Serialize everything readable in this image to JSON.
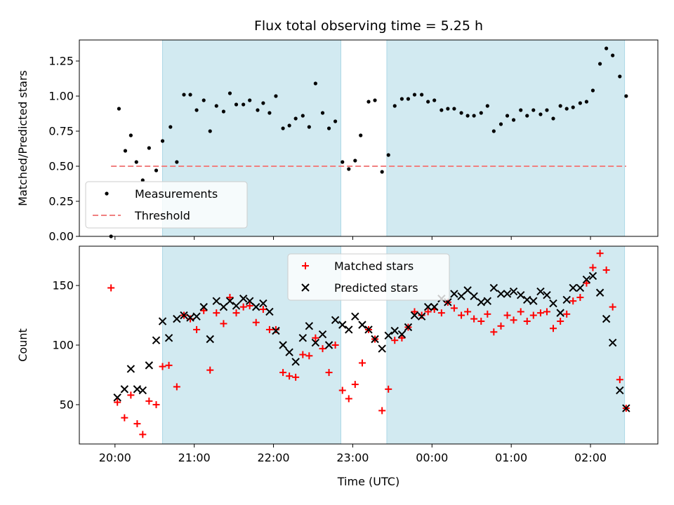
{
  "chart_data": {
    "title": "Flux total observing time = 5.25 h",
    "x_axis": {
      "label": "Time (UTC)",
      "ticks": [
        "20:00",
        "21:00",
        "22:00",
        "23:00",
        "00:00",
        "01:00",
        "02:00"
      ],
      "range_hours": [
        19.55,
        26.85
      ]
    },
    "shaded_intervals_hours": [
      [
        20.6,
        22.85
      ],
      [
        23.43,
        26.43
      ]
    ],
    "colors": {
      "shade": "#add8e6",
      "measurement": "#000000",
      "threshold": "#f08080",
      "matched": "#ff0000",
      "predicted": "#000000"
    },
    "panels": [
      {
        "type": "scatter",
        "ylabel": "Matched/Predicted stars",
        "ylim": [
          0,
          1.4
        ],
        "yticks": [
          "0.00",
          "0.25",
          "0.50",
          "0.75",
          "1.00",
          "1.25"
        ],
        "legend": {
          "placement": "lower-left",
          "entries": [
            "Measurements",
            "Threshold"
          ]
        },
        "threshold": {
          "name": "Threshold",
          "y": 0.5,
          "x_range_hours": [
            19.95,
            26.45
          ]
        },
        "series": [
          {
            "name": "Measurements",
            "marker": "dot",
            "points": [
              [
                19.95,
                0.0
              ],
              [
                20.05,
                0.91
              ],
              [
                20.13,
                0.61
              ],
              [
                20.2,
                0.72
              ],
              [
                20.27,
                0.53
              ],
              [
                20.35,
                0.4
              ],
              [
                20.43,
                0.63
              ],
              [
                20.52,
                0.47
              ],
              [
                20.6,
                0.68
              ],
              [
                20.7,
                0.78
              ],
              [
                20.78,
                0.53
              ],
              [
                20.87,
                1.01
              ],
              [
                20.95,
                1.01
              ],
              [
                21.03,
                0.9
              ],
              [
                21.12,
                0.97
              ],
              [
                21.2,
                0.75
              ],
              [
                21.28,
                0.93
              ],
              [
                21.37,
                0.89
              ],
              [
                21.45,
                1.02
              ],
              [
                21.53,
                0.94
              ],
              [
                21.62,
                0.94
              ],
              [
                21.7,
                0.97
              ],
              [
                21.8,
                0.9
              ],
              [
                21.87,
                0.95
              ],
              [
                21.95,
                0.88
              ],
              [
                22.03,
                1.0
              ],
              [
                22.12,
                0.77
              ],
              [
                22.2,
                0.79
              ],
              [
                22.28,
                0.84
              ],
              [
                22.37,
                0.86
              ],
              [
                22.45,
                0.78
              ],
              [
                22.53,
                1.09
              ],
              [
                22.62,
                0.88
              ],
              [
                22.7,
                0.77
              ],
              [
                22.78,
                0.82
              ],
              [
                22.87,
                0.53
              ],
              [
                22.95,
                0.48
              ],
              [
                23.03,
                0.54
              ],
              [
                23.1,
                0.72
              ],
              [
                23.2,
                0.96
              ],
              [
                23.28,
                0.97
              ],
              [
                23.37,
                0.46
              ],
              [
                23.45,
                0.58
              ],
              [
                23.53,
                0.93
              ],
              [
                23.62,
                0.98
              ],
              [
                23.7,
                0.98
              ],
              [
                23.78,
                1.01
              ],
              [
                23.87,
                1.01
              ],
              [
                23.95,
                0.96
              ],
              [
                24.03,
                0.97
              ],
              [
                24.12,
                0.9
              ],
              [
                24.2,
                0.91
              ],
              [
                24.28,
                0.91
              ],
              [
                24.37,
                0.88
              ],
              [
                24.45,
                0.86
              ],
              [
                24.53,
                0.86
              ],
              [
                24.62,
                0.88
              ],
              [
                24.7,
                0.93
              ],
              [
                24.78,
                0.75
              ],
              [
                24.87,
                0.8
              ],
              [
                24.95,
                0.86
              ],
              [
                25.03,
                0.83
              ],
              [
                25.12,
                0.9
              ],
              [
                25.2,
                0.86
              ],
              [
                25.28,
                0.9
              ],
              [
                25.37,
                0.87
              ],
              [
                25.45,
                0.9
              ],
              [
                25.53,
                0.84
              ],
              [
                25.62,
                0.93
              ],
              [
                25.7,
                0.91
              ],
              [
                25.78,
                0.92
              ],
              [
                25.87,
                0.95
              ],
              [
                25.95,
                0.96
              ],
              [
                26.03,
                1.04
              ],
              [
                26.12,
                1.23
              ],
              [
                26.2,
                1.34
              ],
              [
                26.28,
                1.29
              ],
              [
                26.37,
                1.14
              ],
              [
                26.45,
                1.0
              ]
            ]
          }
        ]
      },
      {
        "type": "scatter",
        "ylabel": "Count",
        "ylim": [
          17,
          183
        ],
        "yticks": [
          "50",
          "100",
          "150"
        ],
        "legend": {
          "placement": "top-center",
          "entries": [
            "Matched stars",
            "Predicted stars"
          ]
        },
        "series": [
          {
            "name": "Matched stars",
            "marker": "plus",
            "points": [
              [
                19.95,
                148
              ],
              [
                20.03,
                52
              ],
              [
                20.12,
                39
              ],
              [
                20.2,
                58
              ],
              [
                20.28,
                34
              ],
              [
                20.35,
                25
              ],
              [
                20.43,
                53
              ],
              [
                20.52,
                50
              ],
              [
                20.6,
                82
              ],
              [
                20.68,
                83
              ],
              [
                20.78,
                65
              ],
              [
                20.87,
                125
              ],
              [
                20.95,
                122
              ],
              [
                21.03,
                113
              ],
              [
                21.12,
                129
              ],
              [
                21.2,
                79
              ],
              [
                21.28,
                127
              ],
              [
                21.37,
                118
              ],
              [
                21.45,
                140
              ],
              [
                21.53,
                127
              ],
              [
                21.62,
                132
              ],
              [
                21.7,
                133
              ],
              [
                21.78,
                119
              ],
              [
                21.87,
                130
              ],
              [
                21.95,
                113
              ],
              [
                22.03,
                113
              ],
              [
                22.12,
                77
              ],
              [
                22.2,
                74
              ],
              [
                22.28,
                73
              ],
              [
                22.37,
                92
              ],
              [
                22.45,
                91
              ],
              [
                22.53,
                106
              ],
              [
                22.62,
                97
              ],
              [
                22.7,
                77
              ],
              [
                22.78,
                100
              ],
              [
                22.87,
                62
              ],
              [
                22.95,
                55
              ],
              [
                23.03,
                67
              ],
              [
                23.12,
                85
              ],
              [
                23.2,
                113
              ],
              [
                23.28,
                105
              ],
              [
                23.37,
                45
              ],
              [
                23.45,
                63
              ],
              [
                23.53,
                104
              ],
              [
                23.62,
                106
              ],
              [
                23.7,
                115
              ],
              [
                23.78,
                128
              ],
              [
                23.87,
                125
              ],
              [
                23.95,
                128
              ],
              [
                24.03,
                130
              ],
              [
                24.12,
                127
              ],
              [
                24.2,
                136
              ],
              [
                24.28,
                131
              ],
              [
                24.37,
                125
              ],
              [
                24.45,
                128
              ],
              [
                24.53,
                122
              ],
              [
                24.62,
                120
              ],
              [
                24.7,
                126
              ],
              [
                24.78,
                111
              ],
              [
                24.87,
                116
              ],
              [
                24.95,
                125
              ],
              [
                25.03,
                121
              ],
              [
                25.12,
                128
              ],
              [
                25.2,
                120
              ],
              [
                25.28,
                125
              ],
              [
                25.37,
                127
              ],
              [
                25.45,
                128
              ],
              [
                25.53,
                114
              ],
              [
                25.62,
                120
              ],
              [
                25.7,
                126
              ],
              [
                25.78,
                137
              ],
              [
                25.87,
                140
              ],
              [
                25.95,
                152
              ],
              [
                26.03,
                165
              ],
              [
                26.12,
                177
              ],
              [
                26.2,
                163
              ],
              [
                26.28,
                132
              ],
              [
                26.37,
                71
              ],
              [
                26.45,
                47
              ]
            ]
          },
          {
            "name": "Predicted stars",
            "marker": "x",
            "points": [
              [
                20.03,
                56
              ],
              [
                20.12,
                63
              ],
              [
                20.2,
                80
              ],
              [
                20.28,
                63
              ],
              [
                20.35,
                62
              ],
              [
                20.43,
                83
              ],
              [
                20.52,
                104
              ],
              [
                20.6,
                120
              ],
              [
                20.68,
                106
              ],
              [
                20.78,
                122
              ],
              [
                20.87,
                125
              ],
              [
                20.95,
                123
              ],
              [
                21.03,
                124
              ],
              [
                21.12,
                132
              ],
              [
                21.2,
                105
              ],
              [
                21.28,
                137
              ],
              [
                21.37,
                132
              ],
              [
                21.45,
                137
              ],
              [
                21.53,
                133
              ],
              [
                21.62,
                139
              ],
              [
                21.7,
                137
              ],
              [
                21.78,
                132
              ],
              [
                21.87,
                135
              ],
              [
                21.95,
                128
              ],
              [
                22.03,
                112
              ],
              [
                22.12,
                100
              ],
              [
                22.2,
                94
              ],
              [
                22.28,
                86
              ],
              [
                22.37,
                106
              ],
              [
                22.45,
                116
              ],
              [
                22.53,
                102
              ],
              [
                22.62,
                109
              ],
              [
                22.7,
                100
              ],
              [
                22.78,
                121
              ],
              [
                22.87,
                117
              ],
              [
                22.95,
                113
              ],
              [
                23.03,
                124
              ],
              [
                23.12,
                117
              ],
              [
                23.2,
                113
              ],
              [
                23.28,
                105
              ],
              [
                23.37,
                97
              ],
              [
                23.45,
                108
              ],
              [
                23.53,
                112
              ],
              [
                23.62,
                109
              ],
              [
                23.7,
                115
              ],
              [
                23.78,
                125
              ],
              [
                23.87,
                124
              ],
              [
                23.95,
                132
              ],
              [
                24.03,
                132
              ],
              [
                24.12,
                139
              ],
              [
                24.2,
                136
              ],
              [
                24.28,
                143
              ],
              [
                24.37,
                141
              ],
              [
                24.45,
                146
              ],
              [
                24.53,
                141
              ],
              [
                24.62,
                136
              ],
              [
                24.7,
                137
              ],
              [
                24.78,
                148
              ],
              [
                24.87,
                143
              ],
              [
                24.95,
                143
              ],
              [
                25.03,
                145
              ],
              [
                25.12,
                142
              ],
              [
                25.2,
                138
              ],
              [
                25.28,
                137
              ],
              [
                25.37,
                145
              ],
              [
                25.45,
                142
              ],
              [
                25.53,
                135
              ],
              [
                25.62,
                127
              ],
              [
                25.7,
                138
              ],
              [
                25.78,
                148
              ],
              [
                25.87,
                148
              ],
              [
                25.95,
                155
              ],
              [
                26.03,
                158
              ],
              [
                26.12,
                144
              ],
              [
                26.2,
                122
              ],
              [
                26.28,
                102
              ],
              [
                26.37,
                62
              ],
              [
                26.45,
                47
              ]
            ]
          }
        ]
      }
    ]
  }
}
